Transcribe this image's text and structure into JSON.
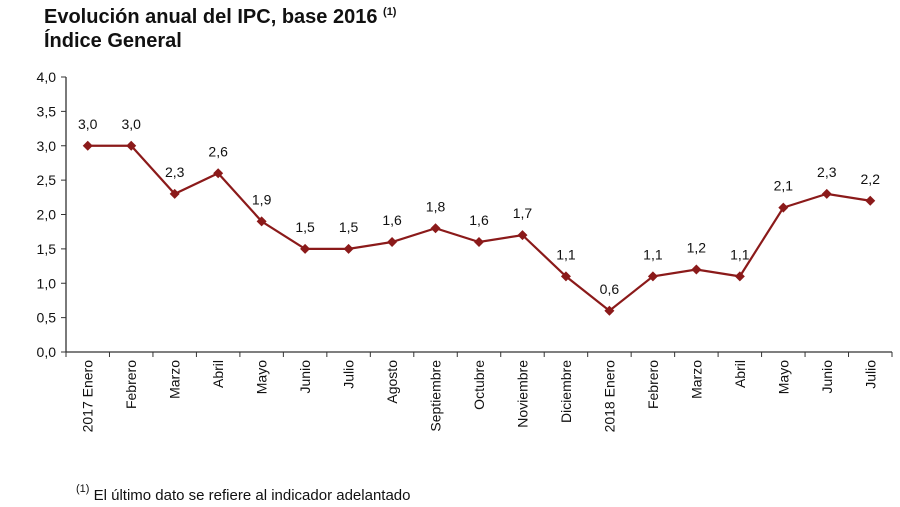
{
  "chart_data": {
    "type": "line",
    "title": "Evolución anual del IPC, base 2016",
    "title_note": "(1)",
    "subtitle": "Índice General",
    "categories": [
      "2017 Enero",
      "Febrero",
      "Marzo",
      "Abril",
      "Mayo",
      "Junio",
      "Julio",
      "Agosto",
      "Septiembre",
      "Octubre",
      "Noviembre",
      "Diciembre",
      "2018 Enero",
      "Febrero",
      "Marzo",
      "Abril",
      "Mayo",
      "Junio",
      "Julio"
    ],
    "values": [
      3.0,
      3.0,
      2.3,
      2.6,
      1.9,
      1.5,
      1.5,
      1.6,
      1.8,
      1.6,
      1.7,
      1.1,
      0.6,
      1.1,
      1.2,
      1.1,
      2.1,
      2.3,
      2.2
    ],
    "data_labels": [
      "3,0",
      "3,0",
      "2,3",
      "2,6",
      "1,9",
      "1,5",
      "1,5",
      "1,6",
      "1,8",
      "1,6",
      "1,7",
      "1,1",
      "0,6",
      "1,1",
      "1,2",
      "1,1",
      "2,1",
      "2,3",
      "2,2"
    ],
    "ylim": [
      0,
      4
    ],
    "yticks": [
      "0,0",
      "0,5",
      "1,0",
      "1,5",
      "2,0",
      "2,5",
      "3,0",
      "3,5",
      "4,0"
    ],
    "xlabel": "",
    "ylabel": "",
    "grid": false,
    "marker": "diamond",
    "color": "#8b1a1a"
  },
  "footnote": {
    "mark": "(1)",
    "text": "El último dato se refiere al indicador adelantado"
  }
}
